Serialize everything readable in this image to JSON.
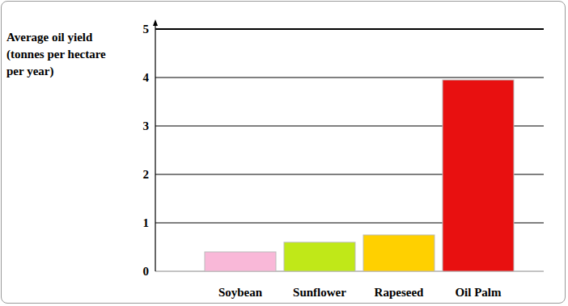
{
  "chart_data": {
    "type": "bar",
    "y_label": "Average oil yield (tonnes per hectare per year)",
    "categories": [
      "Soybean",
      "Sunflower",
      "Rapeseed",
      "Oil Palm"
    ],
    "values": [
      0.4,
      0.6,
      0.75,
      3.95
    ],
    "colors": [
      "#f9b8d8",
      "#c0e818",
      "#ffd000",
      "#e81010"
    ],
    "ylim": [
      0,
      5
    ],
    "yticks": [
      0,
      1,
      2,
      3,
      4,
      5
    ],
    "grid": true
  }
}
